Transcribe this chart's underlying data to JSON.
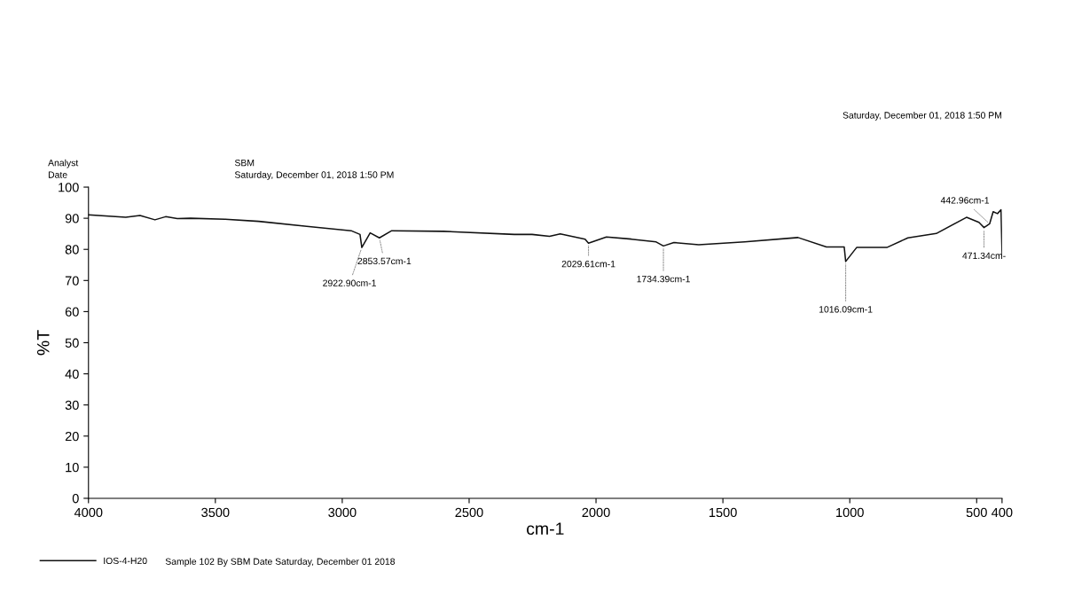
{
  "chart_data": {
    "type": "line",
    "xlabel": "cm-1",
    "ylabel": "%T",
    "xlim": [
      4000,
      400
    ],
    "xticks": [
      4000,
      3500,
      3000,
      2500,
      2000,
      1500,
      1000,
      500,
      400
    ],
    "ylim": [
      0,
      100
    ],
    "yticks": [
      0,
      10,
      20,
      30,
      40,
      50,
      60,
      70,
      80,
      90,
      100
    ],
    "grid": false,
    "legend": "bottom left",
    "marker": "none",
    "line_style": "solid",
    "series": [
      {
        "name": "IOS-4-H20",
        "color": "#111111",
        "x": [
          4000,
          3853,
          3797,
          3738,
          3696,
          3650,
          3598,
          3462,
          3329,
          3140,
          2965,
          2930,
          2922.9,
          2890,
          2853.6,
          2805,
          2602,
          2322,
          2252,
          2183,
          2141,
          2043,
          2029.6,
          1959,
          1861,
          1763,
          1734.4,
          1693,
          1595,
          1414,
          1204,
          1092,
          1022,
          1016.1,
          973,
          854,
          771,
          659,
          540,
          491,
          471,
          449,
          435,
          418,
          404,
          400
        ],
        "values": [
          91.1,
          90.3,
          90.9,
          89.5,
          90.5,
          89.9,
          90.0,
          89.7,
          89.0,
          87.4,
          86.0,
          84.8,
          80.6,
          85.3,
          83.7,
          86.0,
          85.8,
          84.8,
          84.8,
          84.2,
          85.0,
          83.3,
          82.0,
          84.0,
          83.3,
          82.4,
          81.1,
          82.2,
          81.5,
          82.4,
          83.8,
          80.8,
          80.8,
          76.1,
          80.6,
          80.6,
          83.7,
          85.1,
          90.3,
          88.7,
          87.0,
          88.2,
          92.1,
          91.5,
          92.7,
          78.4
        ]
      }
    ],
    "annotations": [
      "Analyst",
      "SBM",
      "Date",
      "Saturday, December 01, 2018 1:50 PM",
      "Saturday, December 01, 2018 1:50 PM",
      "Sample 102 By SBM Date Saturday, December 01 2018",
      {
        "text": "2853.57cm-1",
        "x": 2853.6,
        "y": 83.7
      },
      {
        "text": "2922.90cm-1",
        "x": 2922.9,
        "y": 80.6
      },
      {
        "text": "2029.61cm-1",
        "x": 2029.6,
        "y": 82.0
      },
      {
        "text": "1734.39cm-1",
        "x": 1734.4,
        "y": 81.1
      },
      {
        "text": "1016.09cm-1",
        "x": 1016.1,
        "y": 76.1
      },
      {
        "text": "442.96cm-1",
        "x": 449,
        "y": 88.2
      },
      {
        "text": "471.34cm-",
        "x": 471,
        "y": 87.0
      }
    ]
  }
}
